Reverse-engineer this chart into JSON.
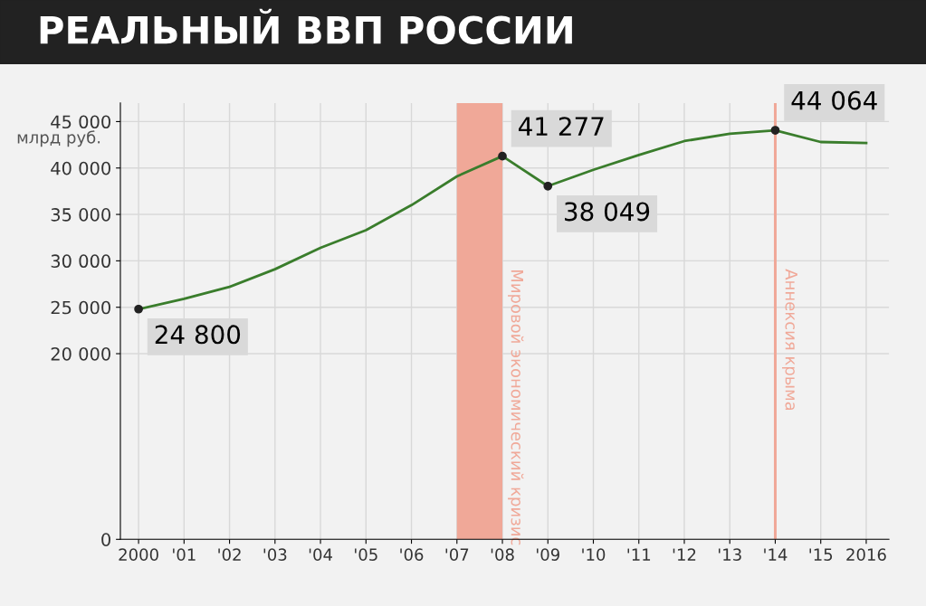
{
  "chart_data": {
    "type": "line",
    "title": "РЕАЛЬНЫЙ ВВП РОССИИ",
    "ylabel": "млрд руб.",
    "x": [
      2000,
      2001,
      2002,
      2003,
      2004,
      2005,
      2006,
      2007,
      2008,
      2009,
      2010,
      2011,
      2012,
      2013,
      2014,
      2015,
      2016
    ],
    "series": [
      {
        "color": "#3a7d2c",
        "values": [
          24800,
          25900,
          27200,
          29100,
          31400,
          33300,
          36000,
          39100,
          41277,
          38049,
          39800,
          41400,
          42900,
          43700,
          44064,
          42800,
          42700
        ],
        "value_labels": [
          "24 800",
          null,
          null,
          null,
          null,
          null,
          null,
          null,
          "41 277",
          "38 049",
          null,
          null,
          null,
          null,
          "44 064",
          null,
          null
        ]
      }
    ],
    "xlim": [
      1999.6,
      2016.5
    ],
    "xticks": [
      {
        "value": 2000,
        "label": "2000"
      },
      {
        "value": 2001,
        "label": "'01"
      },
      {
        "value": 2002,
        "label": "'02"
      },
      {
        "value": 2003,
        "label": "'03"
      },
      {
        "value": 2004,
        "label": "'04"
      },
      {
        "value": 2005,
        "label": "'05"
      },
      {
        "value": 2006,
        "label": "'06"
      },
      {
        "value": 2007,
        "label": "'07"
      },
      {
        "value": 2008,
        "label": "'08"
      },
      {
        "value": 2009,
        "label": "'09"
      },
      {
        "value": 2010,
        "label": "'10"
      },
      {
        "value": 2011,
        "label": "'11"
      },
      {
        "value": 2012,
        "label": "'12"
      },
      {
        "value": 2013,
        "label": "'13"
      },
      {
        "value": 2014,
        "label": "'14"
      },
      {
        "value": 2015,
        "label": "'15"
      },
      {
        "value": 2016,
        "label": "2016"
      }
    ],
    "ylim": [
      0,
      47000
    ],
    "yticks": [
      {
        "value": 0,
        "label": "0"
      },
      {
        "value": 20000,
        "label": "20 000"
      },
      {
        "value": 25000,
        "label": "25 000"
      },
      {
        "value": 30000,
        "label": "30 000"
      },
      {
        "value": 35000,
        "label": "35 000"
      },
      {
        "value": 40000,
        "label": "40 000"
      },
      {
        "value": 45000,
        "label": "45 000"
      }
    ],
    "bands": [
      {
        "axis": "x",
        "from": 2007,
        "to": 2008,
        "label": "Мировой экономический кризис",
        "color": "#f0a898"
      },
      {
        "axis": "x",
        "from": 2013.97,
        "to": 2014.03,
        "label": "Аннексия крыма",
        "color": "#f0a898"
      }
    ],
    "grid": true,
    "marker": "none",
    "line_style": "solid"
  }
}
